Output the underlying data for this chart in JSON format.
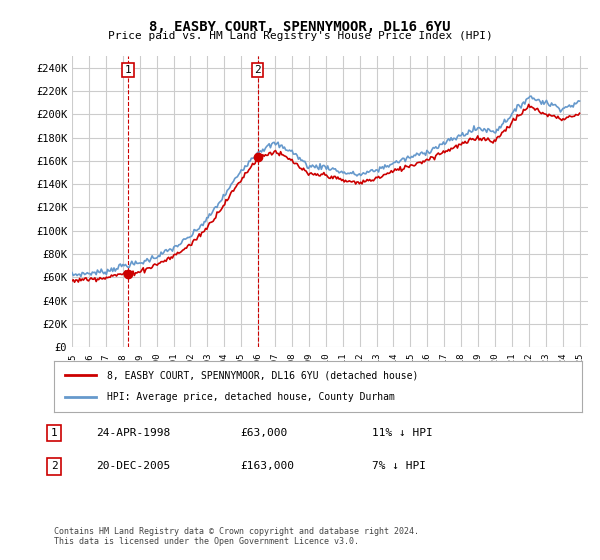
{
  "title": "8, EASBY COURT, SPENNYMOOR, DL16 6YU",
  "subtitle": "Price paid vs. HM Land Registry's House Price Index (HPI)",
  "ylabel_ticks": [
    "£0",
    "£20K",
    "£40K",
    "£60K",
    "£80K",
    "£100K",
    "£120K",
    "£140K",
    "£160K",
    "£180K",
    "£200K",
    "£220K",
    "£240K"
  ],
  "ytick_vals": [
    0,
    20000,
    40000,
    60000,
    80000,
    100000,
    120000,
    140000,
    160000,
    180000,
    200000,
    220000,
    240000
  ],
  "ylim": [
    0,
    250000
  ],
  "xlim_start": 1995.0,
  "xlim_end": 2025.5,
  "sale1_x": 1998.31,
  "sale1_y": 63000,
  "sale1_label": "1",
  "sale2_x": 2005.97,
  "sale2_y": 163000,
  "sale2_label": "2",
  "red_line_color": "#cc0000",
  "blue_line_color": "#6699cc",
  "marker_color": "#cc0000",
  "dashed_color": "#cc0000",
  "grid_color": "#cccccc",
  "background_color": "#ffffff",
  "legend_label_red": "8, EASBY COURT, SPENNYMOOR, DL16 6YU (detached house)",
  "legend_label_blue": "HPI: Average price, detached house, County Durham",
  "table_rows": [
    {
      "num": "1",
      "date": "24-APR-1998",
      "price": "£63,000",
      "change": "11% ↓ HPI"
    },
    {
      "num": "2",
      "date": "20-DEC-2005",
      "price": "£163,000",
      "change": "7% ↓ HPI"
    }
  ],
  "footer": "Contains HM Land Registry data © Crown copyright and database right 2024.\nThis data is licensed under the Open Government Licence v3.0.",
  "xtick_years": [
    1995,
    1996,
    1997,
    1998,
    1999,
    2000,
    2001,
    2002,
    2003,
    2004,
    2005,
    2006,
    2007,
    2008,
    2009,
    2010,
    2011,
    2012,
    2013,
    2014,
    2015,
    2016,
    2017,
    2018,
    2019,
    2020,
    2021,
    2022,
    2023,
    2024,
    2025
  ]
}
